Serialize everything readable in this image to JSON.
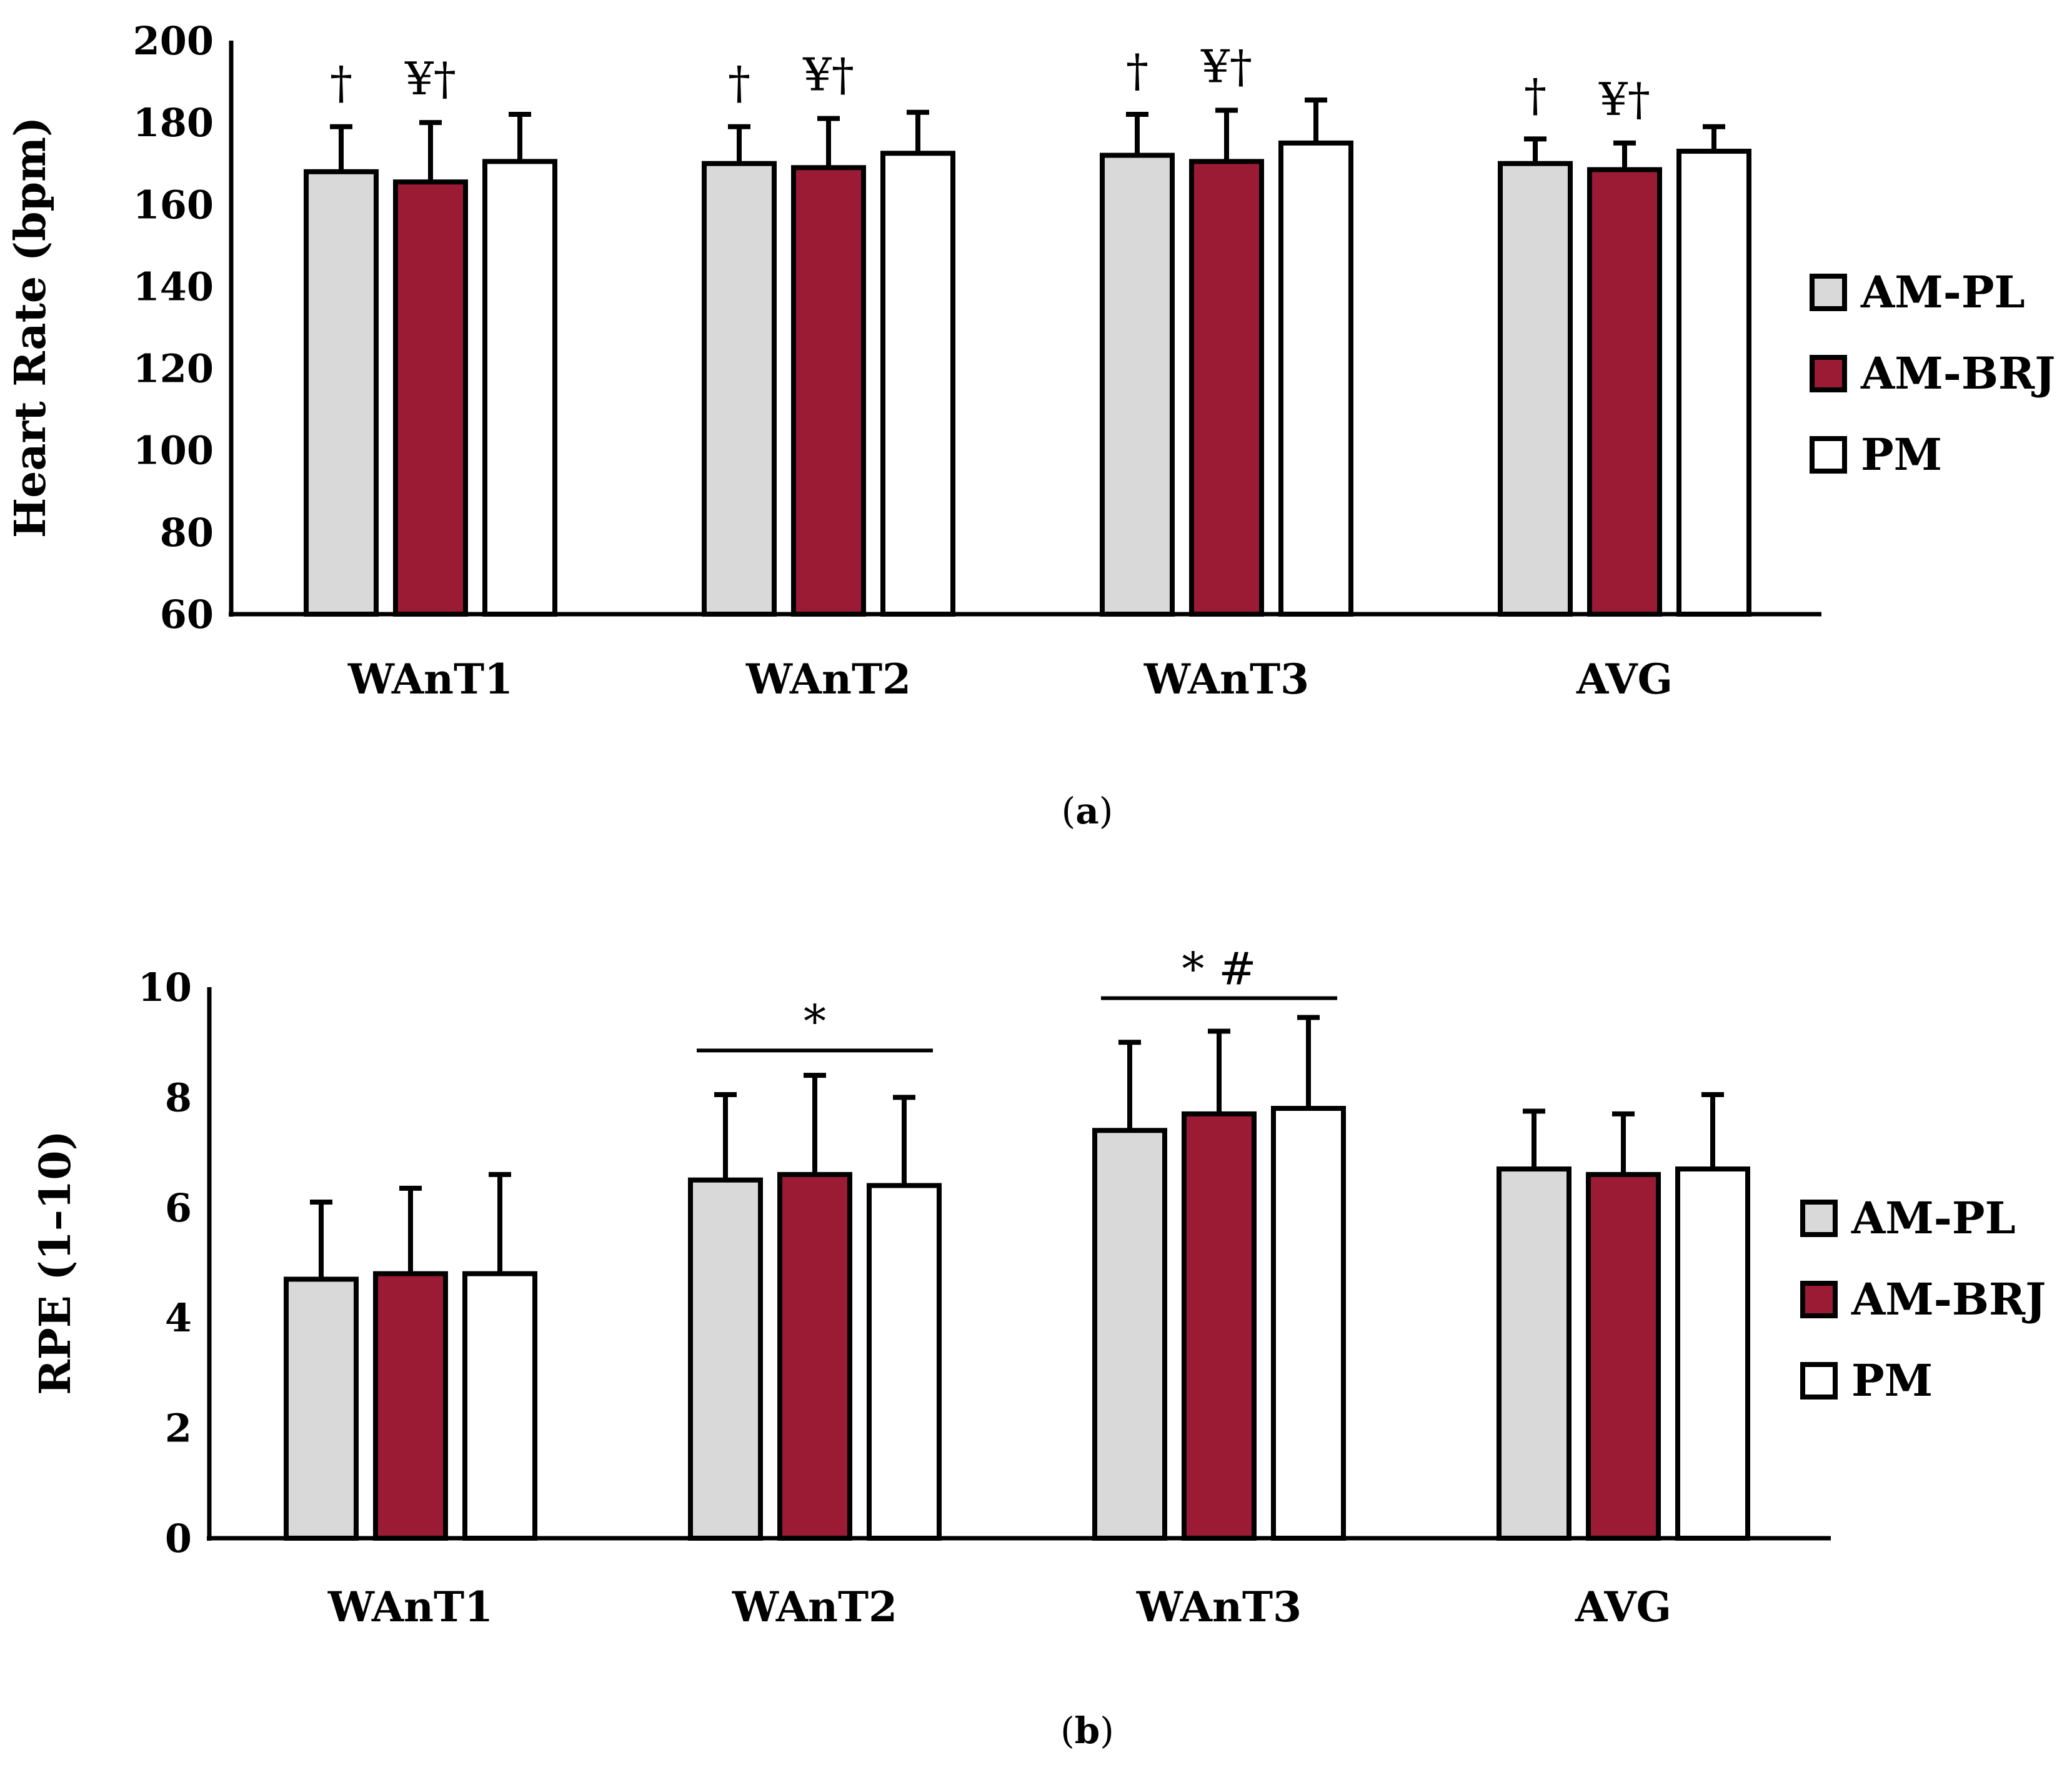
{
  "chart_data": [
    {
      "type": "bar",
      "panel_label": "a",
      "ylabel": "Heart Rate (bpm)",
      "xlabel": "",
      "ylim": [
        60,
        200
      ],
      "yticks": [
        60,
        80,
        100,
        120,
        140,
        160,
        180,
        200
      ],
      "categories": [
        "WAnT1",
        "WAnT2",
        "WAnT3",
        "AVG"
      ],
      "series": [
        {
          "name": "AM-PL",
          "color": "#d9d9d9",
          "values": [
            168,
            170,
            172,
            170
          ],
          "errors": [
            11,
            9,
            10,
            6
          ]
        },
        {
          "name": "AM-BRJ",
          "color": "#9b1b35",
          "values": [
            165.5,
            169,
            170.5,
            168.5
          ],
          "errors": [
            14.5,
            12,
            12.5,
            6.5
          ]
        },
        {
          "name": "PM",
          "color": "#ffffff",
          "values": [
            170.5,
            172.5,
            175,
            173
          ],
          "errors": [
            11.5,
            10,
            10.5,
            6
          ]
        }
      ],
      "annotations": [
        {
          "category": 0,
          "series": 0,
          "text": "†"
        },
        {
          "category": 0,
          "series": 1,
          "text": "¥†"
        },
        {
          "category": 1,
          "series": 0,
          "text": "†"
        },
        {
          "category": 1,
          "series": 1,
          "text": "¥†"
        },
        {
          "category": 2,
          "series": 0,
          "text": "†"
        },
        {
          "category": 2,
          "series": 1,
          "text": "¥†"
        },
        {
          "category": 3,
          "series": 0,
          "text": "†"
        },
        {
          "category": 3,
          "series": 1,
          "text": "¥†"
        }
      ],
      "brackets": [],
      "legend": {
        "position": "right",
        "entries": [
          "AM-PL",
          "AM-BRJ",
          "PM"
        ]
      }
    },
    {
      "type": "bar",
      "panel_label": "b",
      "ylabel": "RPE (1–10)",
      "xlabel": "",
      "ylim": [
        0,
        10
      ],
      "yticks": [
        0,
        2,
        4,
        6,
        8,
        10
      ],
      "categories": [
        "WAnT1",
        "WAnT2",
        "WAnT3",
        "AVG"
      ],
      "series": [
        {
          "name": "AM-PL",
          "color": "#d9d9d9",
          "values": [
            4.7,
            6.5,
            7.4,
            6.7
          ],
          "errors": [
            1.4,
            1.55,
            1.6,
            1.05
          ]
        },
        {
          "name": "AM-BRJ",
          "color": "#9b1b35",
          "values": [
            4.8,
            6.6,
            7.7,
            6.6
          ],
          "errors": [
            1.55,
            1.8,
            1.5,
            1.1
          ]
        },
        {
          "name": "PM",
          "color": "#ffffff",
          "values": [
            4.8,
            6.4,
            7.8,
            6.7
          ],
          "errors": [
            1.8,
            1.6,
            1.65,
            1.35
          ]
        }
      ],
      "annotations": [],
      "brackets": [
        {
          "category": 1,
          "from_series": 0,
          "to_series": 2,
          "level": 8.85,
          "text": "*"
        },
        {
          "category": 2,
          "from_series": 0,
          "to_series": 2,
          "level": 9.8,
          "text": "* #"
        }
      ],
      "legend": {
        "position": "right",
        "entries": [
          "AM-PL",
          "AM-BRJ",
          "PM"
        ]
      }
    }
  ]
}
